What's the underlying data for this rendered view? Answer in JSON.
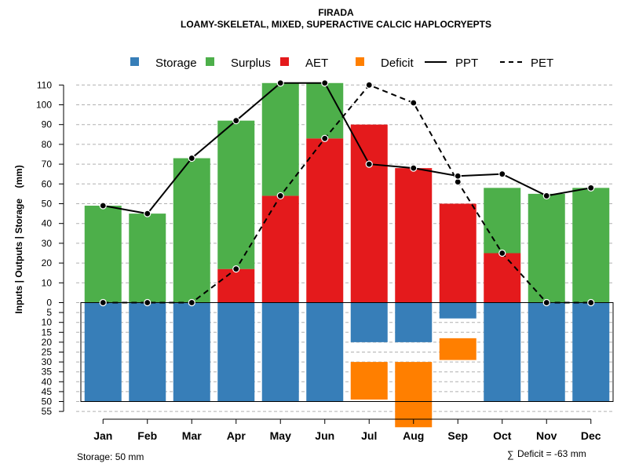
{
  "chart_data": {
    "type": "bar",
    "title": "FIRADA",
    "subtitle": "LOAMY-SKELETAL, MIXED, SUPERACTIVE CALCIC HAPLOCRYEPTS",
    "ylabel": "Inputs | Outputs | Storage    (mm)",
    "categories": [
      "Jan",
      "Feb",
      "Mar",
      "Apr",
      "May",
      "Jun",
      "Jul",
      "Aug",
      "Sep",
      "Oct",
      "Nov",
      "Dec"
    ],
    "ylim_upper": [
      0,
      110
    ],
    "ylim_lower": [
      0,
      55
    ],
    "yticks_upper": [
      "0",
      "10",
      "20",
      "30",
      "40",
      "50",
      "60",
      "70",
      "80",
      "90",
      "100",
      "110"
    ],
    "yticks_lower": [
      "5",
      "10",
      "15",
      "20",
      "25",
      "30",
      "35",
      "40",
      "45",
      "50",
      "55"
    ],
    "storage_capacity": 50,
    "series": [
      {
        "name": "Storage",
        "color": "#377EB8",
        "values": [
          50,
          50,
          50,
          50,
          50,
          50,
          20,
          20,
          8,
          50,
          50,
          50
        ]
      },
      {
        "name": "Surplus",
        "color": "#4DAF4A",
        "values": [
          49,
          45,
          73,
          75,
          57,
          28,
          0,
          0,
          0,
          33,
          55,
          58
        ]
      },
      {
        "name": "AET",
        "color": "#E41A1C",
        "values": [
          0,
          0,
          0,
          17,
          54,
          83,
          90,
          68,
          50,
          25,
          0,
          0
        ]
      },
      {
        "name": "Deficit",
        "color": "#FF7F00",
        "values": [
          0,
          0,
          0,
          0,
          0,
          0,
          19,
          33,
          11,
          0,
          0,
          0
        ]
      },
      {
        "name": "PPT",
        "color": "#000000",
        "style": "solid",
        "values": [
          49,
          45,
          73,
          92,
          111,
          111,
          70,
          68,
          64,
          65,
          54,
          58
        ]
      },
      {
        "name": "PET",
        "color": "#000000",
        "style": "dashed",
        "values": [
          0,
          0,
          0,
          17,
          54,
          83,
          110,
          101,
          61,
          25,
          0,
          0
        ]
      }
    ],
    "legend": [
      "Storage",
      "Surplus",
      "AET",
      "Deficit",
      "PPT",
      "PET"
    ],
    "legend_position": "top",
    "grid": true
  },
  "footer": {
    "storage_note": "Storage: 50 mm",
    "deficit_symbol": "∑",
    "deficit_note": "Deficit = -63 mm"
  }
}
